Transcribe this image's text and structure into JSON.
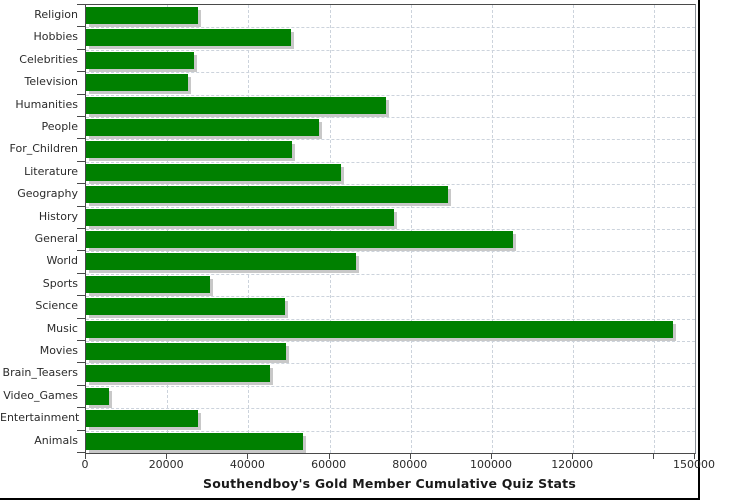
{
  "title": "Southendboy's Gold Member Cumulative Quiz Stats",
  "chart_data": {
    "type": "bar",
    "orientation": "horizontal",
    "title": "Southendboy's Gold Member Cumulative Quiz Stats",
    "categories": [
      "Religion",
      "Hobbies",
      "Celebrities",
      "Television",
      "Humanities",
      "People",
      "For_Children",
      "Literature",
      "Geography",
      "History",
      "General",
      "World",
      "Sports",
      "Science",
      "Music",
      "Movies",
      "Brain_Teasers",
      "Video_Games",
      "Entertainment",
      "Animals"
    ],
    "values": [
      27500,
      50400,
      26700,
      25000,
      74000,
      57500,
      50700,
      62800,
      89200,
      75800,
      105200,
      66500,
      30600,
      49000,
      144500,
      49300,
      45200,
      5700,
      27500,
      53400
    ],
    "xlim": [
      0,
      150000
    ],
    "x_tick_interval": 20000,
    "x_tick_labels": [
      "0",
      "20000",
      "40000",
      "60000",
      "80000",
      "100000",
      "120000"
    ],
    "x_unlabeled_tick": 140000,
    "x_end_tick_label": "150000",
    "grid": true,
    "legend": "none",
    "bar_color": "#008000",
    "shadow_color": "#c8c8c8",
    "grid_color": "#ccd3dc",
    "axis_color": "#4a4a4a",
    "text_color": "#2b2b2b"
  }
}
